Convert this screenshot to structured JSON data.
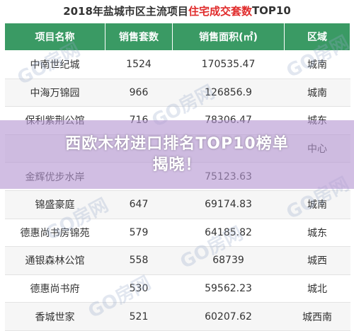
{
  "title": {
    "prefix": "2018年盐城市区主流项目",
    "highlight": "住宅成交套数",
    "suffix": "TOP10"
  },
  "table": {
    "headers": [
      "项目名称",
      "销售套数",
      "销售面积(㎡)",
      "区域"
    ],
    "rows": [
      [
        "中南世纪城",
        "1524",
        "170535.47",
        "城南"
      ],
      [
        "中海万锦园",
        "966",
        "126856.9",
        "城南"
      ],
      [
        "保利紫荆公馆",
        "716",
        "78306.47",
        "城东"
      ],
      [
        "",
        "",
        "",
        "中心"
      ],
      [
        "金辉优步水岸",
        "",
        "75123.63",
        ""
      ],
      [
        "锦盛豪庭",
        "647",
        "69174.83",
        "城南"
      ],
      [
        "德惠尚书房锦苑",
        "579",
        "64185.82",
        "城东"
      ],
      [
        "通银森林公馆",
        "558",
        "68739",
        "城西"
      ],
      [
        "德惠尚书府",
        "530",
        "59562.23",
        "城北"
      ],
      [
        "香城世家",
        "521",
        "60207.62",
        "城西南"
      ]
    ]
  },
  "watermark": "GO房网",
  "overlay": {
    "line1": "西欧木材进口排名TOP10榜单",
    "line2": "揭晓！"
  }
}
